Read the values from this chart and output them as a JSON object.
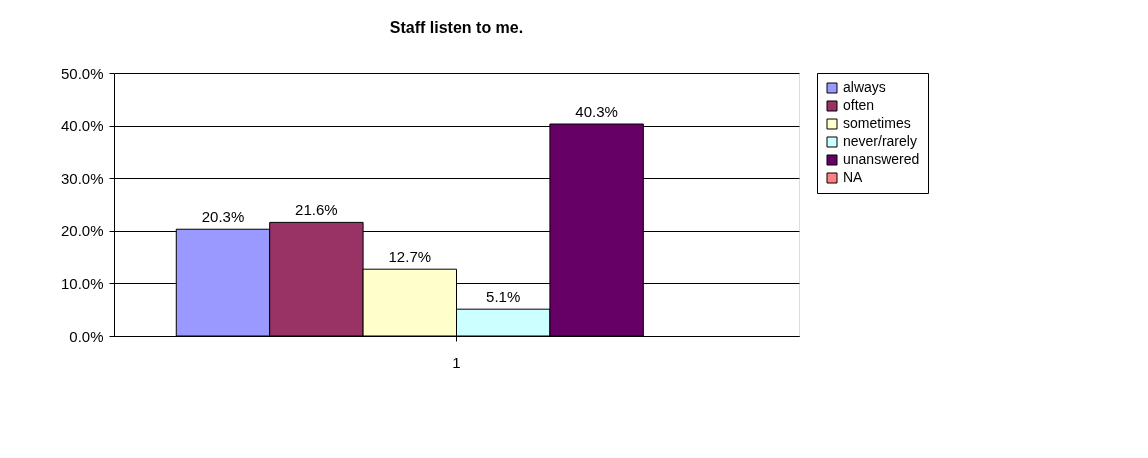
{
  "chart_data": {
    "type": "bar",
    "title": "Staff listen to me.",
    "categories": [
      "1"
    ],
    "series": [
      {
        "name": "always",
        "color": "#9999ff",
        "values": [
          20.3
        ],
        "value_labels": [
          "20.3%"
        ]
      },
      {
        "name": "often",
        "color": "#993366",
        "values": [
          21.6
        ],
        "value_labels": [
          "21.6%"
        ]
      },
      {
        "name": "sometimes",
        "color": "#ffffcc",
        "values": [
          12.7
        ],
        "value_labels": [
          "12.7%"
        ]
      },
      {
        "name": "never/rarely",
        "color": "#ccffff",
        "values": [
          5.1
        ],
        "value_labels": [
          "5.1%"
        ]
      },
      {
        "name": "unanswered",
        "color": "#660066",
        "values": [
          40.3
        ],
        "value_labels": [
          "40.3%"
        ]
      },
      {
        "name": "NA",
        "color": "#ff8080",
        "values": [
          null
        ],
        "value_labels": [
          null
        ]
      }
    ],
    "ylim": [
      0,
      50
    ],
    "yticks": [
      {
        "value": 0,
        "label": "0.0%"
      },
      {
        "value": 10,
        "label": "10.0%"
      },
      {
        "value": 20,
        "label": "20.0%"
      },
      {
        "value": 30,
        "label": "30.0%"
      },
      {
        "value": 40,
        "label": "40.0%"
      },
      {
        "value": 50,
        "label": "50.0%"
      }
    ],
    "grid": "y",
    "legend": "right"
  }
}
